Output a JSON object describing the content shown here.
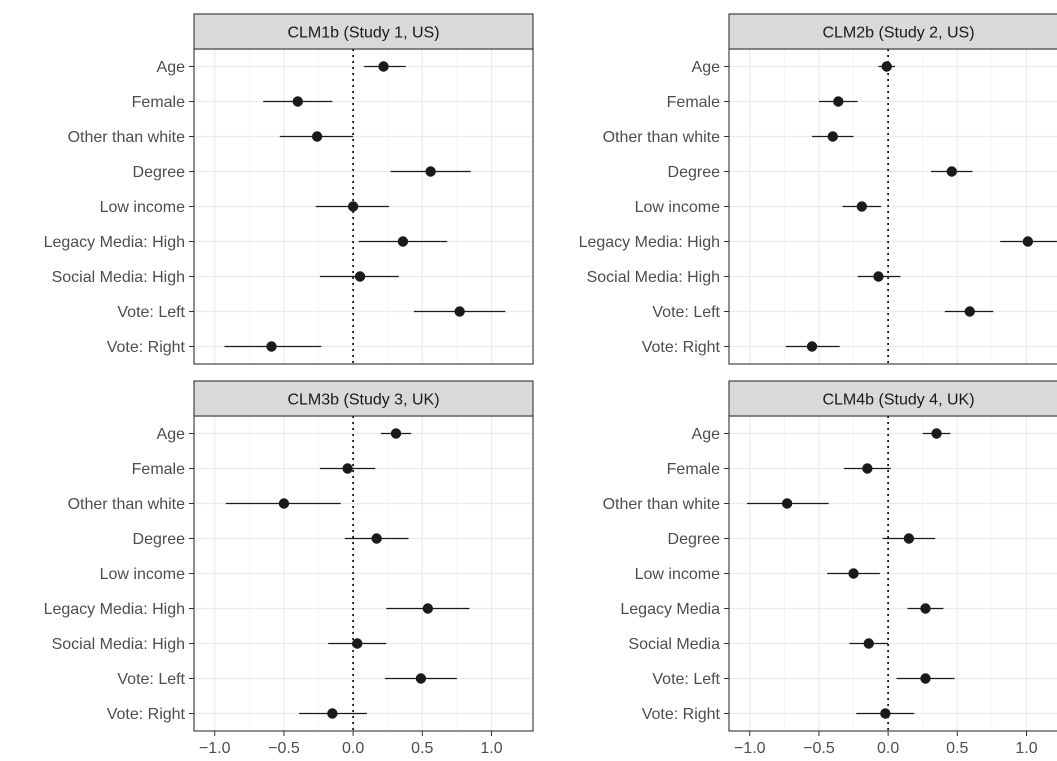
{
  "chart_data": {
    "type": "scatter",
    "x_ticks": [
      -1.0,
      -0.5,
      0.0,
      0.5,
      1.0
    ],
    "x_tick_labels": [
      "−1.0",
      "−0.5",
      "0.0",
      "0.5",
      "1.0"
    ],
    "xlim": [
      -1.15,
      1.3
    ],
    "reference_line": 0,
    "grid": true,
    "panels": [
      {
        "title": "CLM1b (Study 1, US)",
        "terms": [
          "Age",
          "Female",
          "Other than white",
          "Degree",
          "Low income",
          "Legacy Media: High",
          "Social Media: High",
          "Vote: Left",
          "Vote: Right"
        ],
        "estimate": [
          0.22,
          -0.4,
          -0.26,
          0.56,
          0.0,
          0.36,
          0.05,
          0.77,
          -0.59
        ],
        "ci_low": [
          0.08,
          -0.65,
          -0.53,
          0.27,
          -0.27,
          0.04,
          -0.24,
          0.44,
          -0.93
        ],
        "ci_high": [
          0.38,
          -0.15,
          0.0,
          0.85,
          0.26,
          0.68,
          0.33,
          1.1,
          -0.23
        ]
      },
      {
        "title": "CLM2b (Study 2, US)",
        "terms": [
          "Age",
          "Female",
          "Other than white",
          "Degree",
          "Low income",
          "Legacy Media: High",
          "Social Media: High",
          "Vote: Left",
          "Vote: Right"
        ],
        "estimate": [
          -0.01,
          -0.36,
          -0.4,
          0.46,
          -0.19,
          1.01,
          -0.07,
          0.59,
          -0.55
        ],
        "ci_low": [
          -0.07,
          -0.5,
          -0.55,
          0.31,
          -0.33,
          0.81,
          -0.22,
          0.41,
          -0.74
        ],
        "ci_high": [
          0.05,
          -0.22,
          -0.25,
          0.61,
          -0.05,
          1.22,
          0.09,
          0.76,
          -0.35
        ]
      },
      {
        "title": "CLM3b (Study 3, UK)",
        "terms": [
          "Age",
          "Female",
          "Other than white",
          "Degree",
          "Low income",
          "Legacy Media: High",
          "Social Media: High",
          "Vote: Left",
          "Vote: Right"
        ],
        "estimate": [
          0.31,
          -0.04,
          -0.5,
          0.17,
          null,
          0.54,
          0.03,
          0.49,
          -0.15
        ],
        "ci_low": [
          0.2,
          -0.24,
          -0.92,
          -0.06,
          null,
          0.24,
          -0.18,
          0.23,
          -0.39
        ],
        "ci_high": [
          0.42,
          0.16,
          -0.09,
          0.4,
          null,
          0.84,
          0.24,
          0.75,
          0.1
        ]
      },
      {
        "title": "CLM4b (Study 4, UK)",
        "terms": [
          "Age",
          "Female",
          "Other than white",
          "Degree",
          "Low income",
          "Legacy Media",
          "Social Media",
          "Vote: Left",
          "Vote: Right"
        ],
        "estimate": [
          0.35,
          -0.15,
          -0.73,
          0.15,
          -0.25,
          0.27,
          -0.14,
          0.27,
          -0.02
        ],
        "ci_low": [
          0.25,
          -0.32,
          -1.02,
          -0.04,
          -0.44,
          0.14,
          -0.28,
          0.06,
          -0.23
        ],
        "ci_high": [
          0.45,
          0.02,
          -0.43,
          0.34,
          -0.06,
          0.4,
          0.0,
          0.48,
          0.19
        ]
      }
    ]
  }
}
